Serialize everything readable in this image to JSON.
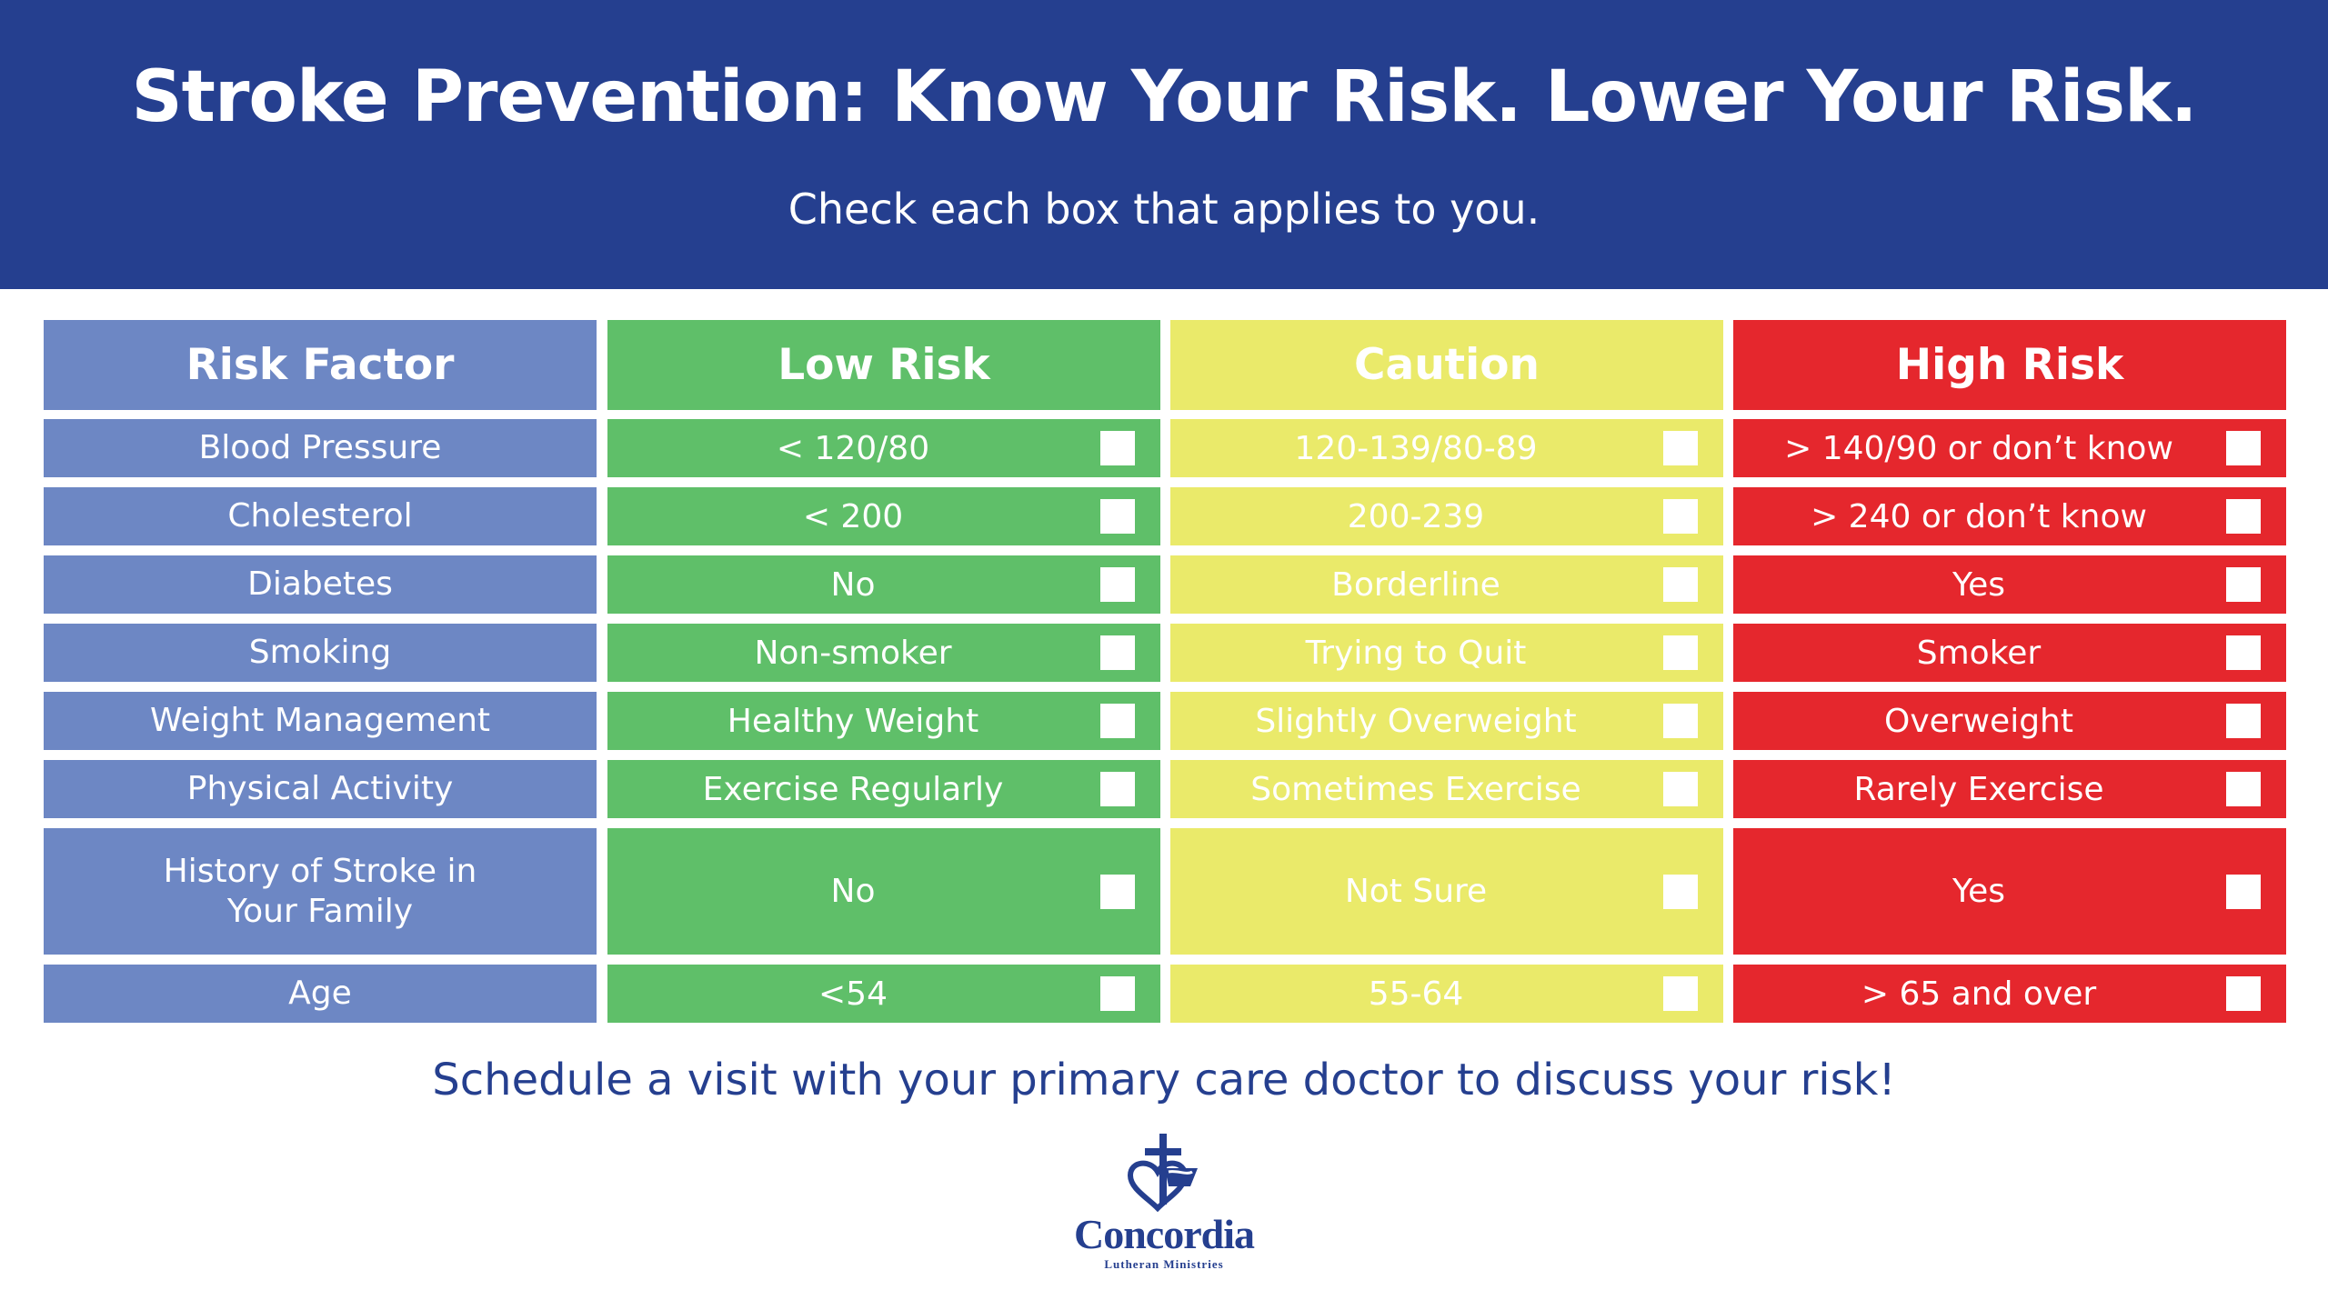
{
  "header": {
    "title": "Stroke Prevention: Know Your Risk. Lower Your Risk.",
    "subtitle": "Check each box that applies to you."
  },
  "table": {
    "columns": [
      "Risk Factor",
      "Low Risk",
      "Caution",
      "High Risk"
    ],
    "rows": [
      {
        "factor": "Blood Pressure",
        "low": "< 120/80",
        "caution": "120-139/80-89",
        "high": "> 140/90 or don’t know"
      },
      {
        "factor": "Cholesterol",
        "low": "< 200",
        "caution": "200-239",
        "high": "> 240 or don’t know"
      },
      {
        "factor": "Diabetes",
        "low": "No",
        "caution": "Borderline",
        "high": "Yes"
      },
      {
        "factor": "Smoking",
        "low": "Non-smoker",
        "caution": "Trying to Quit",
        "high": "Smoker"
      },
      {
        "factor": "Weight Management",
        "low": "Healthy Weight",
        "caution": "Slightly Overweight",
        "high": "Overweight"
      },
      {
        "factor": "Physical Activity",
        "low": "Exercise Regularly",
        "caution": "Sometimes Exercise",
        "high": "Rarely Exercise"
      },
      {
        "factor": "History of Stroke in Your Family",
        "low": "No",
        "caution": "Not Sure",
        "high": "Yes"
      },
      {
        "factor": "Age",
        "low": "<54",
        "caution": "55-64",
        "high": "> 65 and over"
      }
    ]
  },
  "footer": {
    "note": "Schedule a visit with your primary care doctor to discuss your risk!"
  },
  "logo": {
    "name": "Concordia",
    "subtitle": "Lutheran Ministries"
  },
  "colors": {
    "header_bg": "#253f8f",
    "factor": "#6d87c4",
    "low": "#5fbf69",
    "caution": "#eaea6a",
    "high": "#e5272d"
  }
}
